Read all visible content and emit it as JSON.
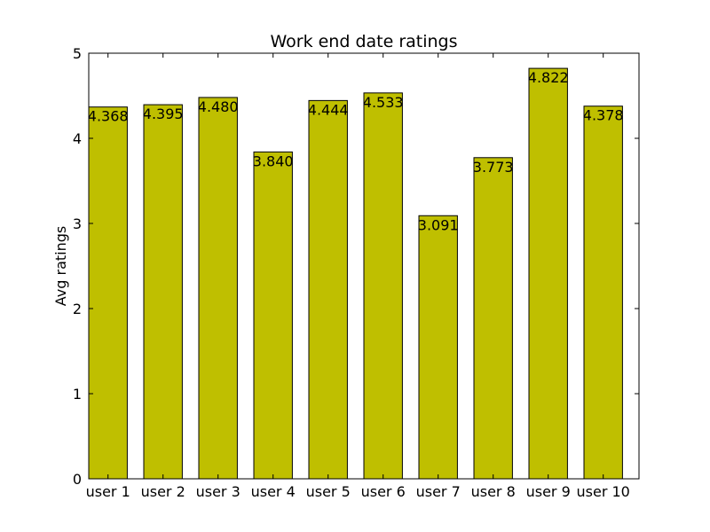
{
  "chart_data": {
    "type": "bar",
    "title": "Work end date ratings",
    "xlabel": "",
    "ylabel": "Avg ratings",
    "categories": [
      "user 1",
      "user 2",
      "user 3",
      "user 4",
      "user 5",
      "user 6",
      "user 7",
      "user 8",
      "user 9",
      "user 10"
    ],
    "values": [
      4.368,
      4.395,
      4.48,
      3.84,
      4.444,
      4.533,
      3.091,
      3.773,
      4.822,
      4.378
    ],
    "value_labels": [
      "4.368",
      "4.395",
      "4.480",
      "3.840",
      "4.444",
      "4.533",
      "3.091",
      "3.773",
      "4.822",
      "4.378"
    ],
    "ylim": [
      0,
      5
    ],
    "yticks": [
      "0",
      "1",
      "2",
      "3",
      "4",
      "5"
    ],
    "bar_color": "#bfbf00",
    "grid": false,
    "legend": "none"
  }
}
